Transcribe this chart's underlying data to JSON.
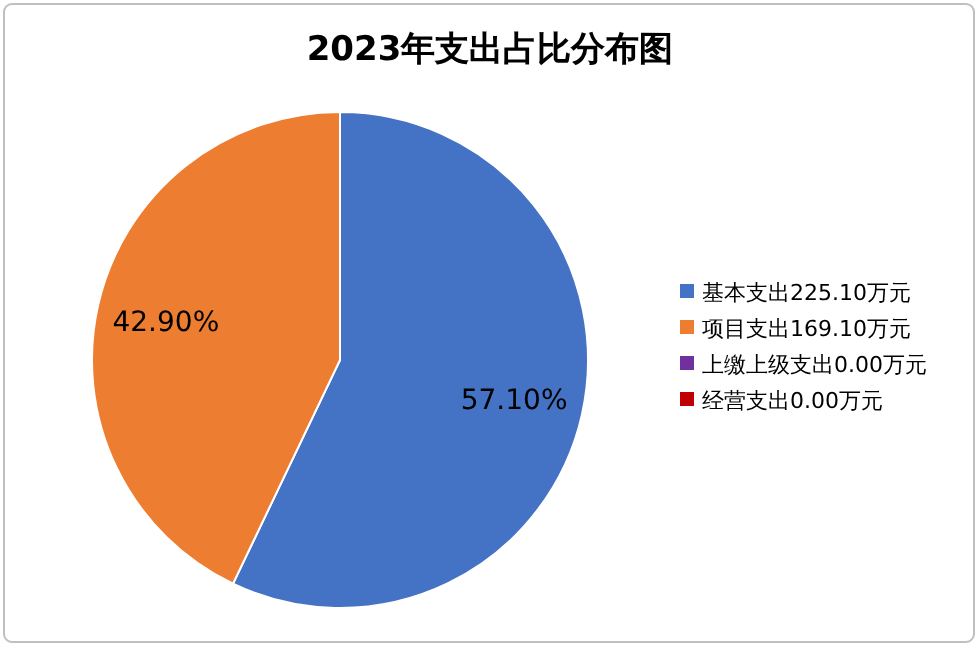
{
  "chart_data": {
    "type": "pie",
    "title": "2023年支出占比分布图",
    "categories": [
      "基本支出225.10万元",
      "项目支出169.10万元",
      "上缴上级支出0.00万元",
      "经营支出0.00万元"
    ],
    "values": [
      57.1,
      42.9,
      0,
      0
    ],
    "colors": [
      "#4472c4",
      "#ed7d31",
      "#7030a0",
      "#c00000"
    ],
    "value_labels": [
      "57.10%",
      "42.90%",
      null,
      null
    ],
    "legend": "right"
  }
}
